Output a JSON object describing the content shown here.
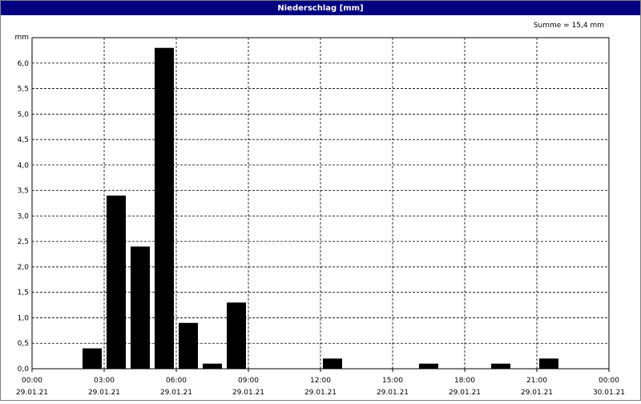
{
  "chart_data": {
    "type": "bar",
    "title": "Niederschlag [mm]",
    "y_unit": "mm",
    "annotation": "Summe = 15,4 mm",
    "x": [
      2,
      3,
      4,
      5,
      6,
      7,
      8,
      12,
      16,
      19,
      21
    ],
    "values": [
      0.4,
      3.4,
      2.4,
      6.3,
      0.9,
      0.1,
      1.3,
      0.2,
      0.1,
      0.1,
      0.2
    ],
    "color": "#000000",
    "xlim": [
      0,
      24
    ],
    "xticks": [
      {
        "value": 0,
        "label": "00:00"
      },
      {
        "value": 3,
        "label": "03:00"
      },
      {
        "value": 6,
        "label": "06:00"
      },
      {
        "value": 9,
        "label": "09:00"
      },
      {
        "value": 12,
        "label": "12:00"
      },
      {
        "value": 15,
        "label": "15:00"
      },
      {
        "value": 18,
        "label": "18:00"
      },
      {
        "value": 21,
        "label": "21:00"
      },
      {
        "value": 24,
        "label": "00:00"
      }
    ],
    "xtick_dates": [
      "29.01.21",
      "29.01.21",
      "29.01.21",
      "29.01.21",
      "29.01.21",
      "29.01.21",
      "29.01.21",
      "29.01.21",
      "30.01.21"
    ],
    "ylim": [
      0,
      6.5
    ],
    "yticks": [
      {
        "value": 0,
        "label": "0,0"
      },
      {
        "value": 0.5,
        "label": "0,5"
      },
      {
        "value": 1,
        "label": "1,0"
      },
      {
        "value": 1.5,
        "label": "1,5"
      },
      {
        "value": 2,
        "label": "2,0"
      },
      {
        "value": 2.5,
        "label": "2,5"
      },
      {
        "value": 3,
        "label": "3,0"
      },
      {
        "value": 3.5,
        "label": "3,5"
      },
      {
        "value": 4,
        "label": "4,0"
      },
      {
        "value": 4.5,
        "label": "4,5"
      },
      {
        "value": 5,
        "label": "5,0"
      },
      {
        "value": 5.5,
        "label": "5,5"
      },
      {
        "value": 6,
        "label": "6,0"
      }
    ],
    "grid": true
  }
}
